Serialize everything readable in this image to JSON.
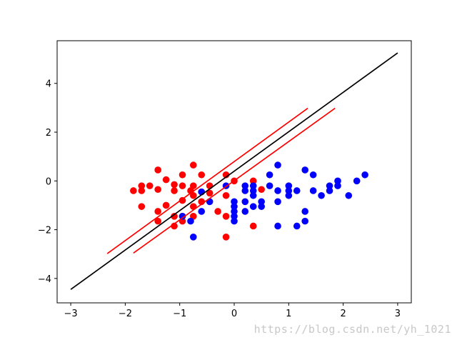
{
  "chart_data": {
    "type": "scatter",
    "xlim": [
      -3.25,
      3.25
    ],
    "ylim": [
      -5,
      5.75
    ],
    "xticks": [
      -3,
      -2,
      -1,
      0,
      1,
      2,
      3
    ],
    "yticks": [
      -4,
      -2,
      0,
      2,
      4
    ],
    "xtick_labels": [
      "−3",
      "−2",
      "−1",
      "0",
      "1",
      "2",
      "3"
    ],
    "ytick_labels": [
      "−4",
      "−2",
      "0",
      "2",
      "4"
    ],
    "grid": false,
    "series": [
      {
        "kind": "points",
        "color": "#ff0000",
        "points": [
          [
            -1.85,
            -0.4
          ],
          [
            -1.7,
            -0.2
          ],
          [
            -1.7,
            -0.4
          ],
          [
            -1.55,
            -0.2
          ],
          [
            -1.7,
            -1.05
          ],
          [
            -1.4,
            0.45
          ],
          [
            -1.4,
            -0.35
          ],
          [
            -1.25,
            0.05
          ],
          [
            -1.25,
            -1.0
          ],
          [
            -1.4,
            -1.25
          ],
          [
            -1.4,
            -1.65
          ],
          [
            -1.1,
            -0.15
          ],
          [
            -1.1,
            -0.4
          ],
          [
            -0.95,
            0.25
          ],
          [
            -0.95,
            -0.2
          ],
          [
            -0.95,
            -0.8
          ],
          [
            -0.95,
            -1.45
          ],
          [
            -1.1,
            -1.45
          ],
          [
            -1.1,
            -1.85
          ],
          [
            -0.8,
            -0.4
          ],
          [
            -0.75,
            -0.2
          ],
          [
            -0.75,
            0.65
          ],
          [
            -0.75,
            -0.6
          ],
          [
            -0.75,
            -1.05
          ],
          [
            -0.75,
            -1.45
          ],
          [
            -0.6,
            0.25
          ],
          [
            -0.6,
            -0.45
          ],
          [
            -0.6,
            -0.85
          ],
          [
            -0.45,
            -0.2
          ],
          [
            -0.45,
            -0.5
          ],
          [
            -0.3,
            -1.25
          ],
          [
            -0.15,
            0.25
          ],
          [
            -0.15,
            -0.6
          ],
          [
            -0.15,
            -1.45
          ],
          [
            -0.15,
            -2.3
          ],
          [
            0.0,
            0.0
          ],
          [
            0.35,
            0.0
          ],
          [
            0.35,
            -1.85
          ],
          [
            0.5,
            -0.35
          ],
          [
            -0.95,
            -1.65
          ]
        ]
      },
      {
        "kind": "points",
        "color": "#0000ff",
        "points": [
          [
            -0.95,
            -1.45
          ],
          [
            -0.8,
            -1.65
          ],
          [
            -0.75,
            -2.3
          ],
          [
            -0.6,
            -0.45
          ],
          [
            -0.6,
            -1.25
          ],
          [
            -0.45,
            -0.85
          ],
          [
            -0.15,
            -0.2
          ],
          [
            0.0,
            -0.85
          ],
          [
            0.0,
            -1.05
          ],
          [
            0.0,
            -1.25
          ],
          [
            0.0,
            -1.45
          ],
          [
            0.0,
            -1.65
          ],
          [
            0.2,
            -0.2
          ],
          [
            0.2,
            -0.4
          ],
          [
            0.2,
            -0.85
          ],
          [
            0.2,
            -1.25
          ],
          [
            0.35,
            -0.2
          ],
          [
            0.35,
            -0.4
          ],
          [
            0.35,
            -0.6
          ],
          [
            0.35,
            -1.05
          ],
          [
            0.5,
            -0.85
          ],
          [
            0.5,
            -1.05
          ],
          [
            0.65,
            -0.2
          ],
          [
            0.65,
            0.25
          ],
          [
            0.8,
            0.65
          ],
          [
            0.8,
            -0.4
          ],
          [
            0.8,
            -0.85
          ],
          [
            0.8,
            -1.85
          ],
          [
            1.0,
            -0.2
          ],
          [
            1.0,
            -0.4
          ],
          [
            1.0,
            -0.6
          ],
          [
            1.15,
            -0.4
          ],
          [
            1.15,
            -1.85
          ],
          [
            1.3,
            0.45
          ],
          [
            1.3,
            -1.25
          ],
          [
            1.3,
            -1.65
          ],
          [
            1.45,
            0.25
          ],
          [
            1.45,
            -0.4
          ],
          [
            1.6,
            -0.6
          ],
          [
            1.75,
            -0.2
          ],
          [
            1.75,
            -0.4
          ],
          [
            1.9,
            0.0
          ],
          [
            1.9,
            -0.2
          ],
          [
            2.1,
            -0.6
          ],
          [
            2.25,
            0.0
          ],
          [
            2.4,
            0.25
          ]
        ]
      },
      {
        "kind": "line",
        "color": "#000000",
        "points": [
          [
            -3,
            -4.45
          ],
          [
            3,
            5.25
          ]
        ]
      },
      {
        "kind": "line",
        "color": "#ff0000",
        "points": [
          [
            -2.33,
            -2.98
          ],
          [
            1.35,
            2.98
          ]
        ]
      },
      {
        "kind": "line",
        "color": "#ff0000",
        "points": [
          [
            -1.85,
            -2.96
          ],
          [
            1.85,
            2.98
          ]
        ]
      }
    ]
  },
  "watermark": "https://blog.csdn.net/yh_1021"
}
